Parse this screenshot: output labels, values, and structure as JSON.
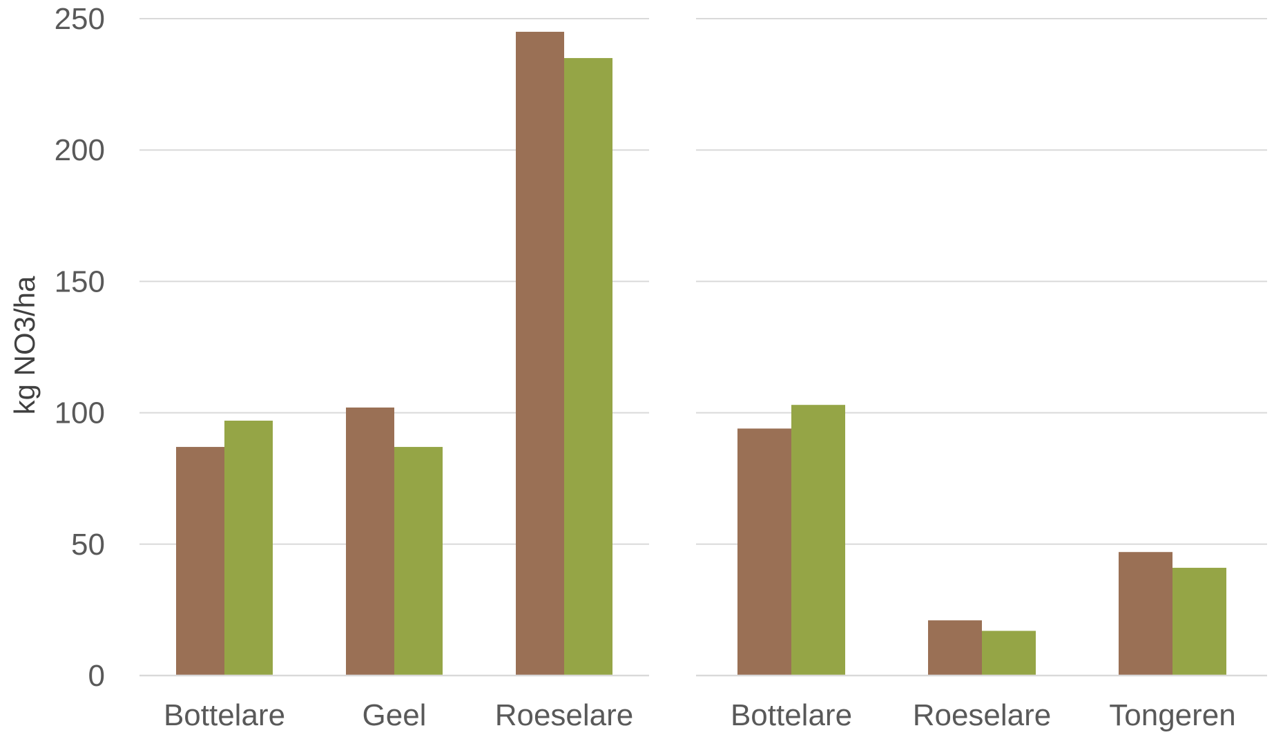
{
  "chart_data": [
    {
      "type": "bar",
      "title": "",
      "xlabel": "",
      "ylabel": "kg NO3/ha",
      "ylim": [
        0,
        250
      ],
      "yticks": [
        "0",
        "50",
        "100",
        "150",
        "200",
        "250"
      ],
      "grid": true,
      "categories": [
        "Bottelare",
        "Geel",
        "Roeselare"
      ],
      "series": [
        {
          "color": "#9a7055",
          "values": [
            87,
            102,
            245
          ]
        },
        {
          "color": "#95a546",
          "values": [
            97,
            87,
            235
          ]
        }
      ]
    },
    {
      "type": "bar",
      "title": "",
      "xlabel": "",
      "ylabel": "",
      "ylim": [
        0,
        250
      ],
      "grid": true,
      "categories": [
        "Bottelare",
        "Roeselare",
        "Tongeren"
      ],
      "series": [
        {
          "color": "#9a7055",
          "values": [
            94,
            21,
            47
          ]
        },
        {
          "color": "#95a546",
          "values": [
            103,
            17,
            41
          ]
        }
      ]
    }
  ]
}
